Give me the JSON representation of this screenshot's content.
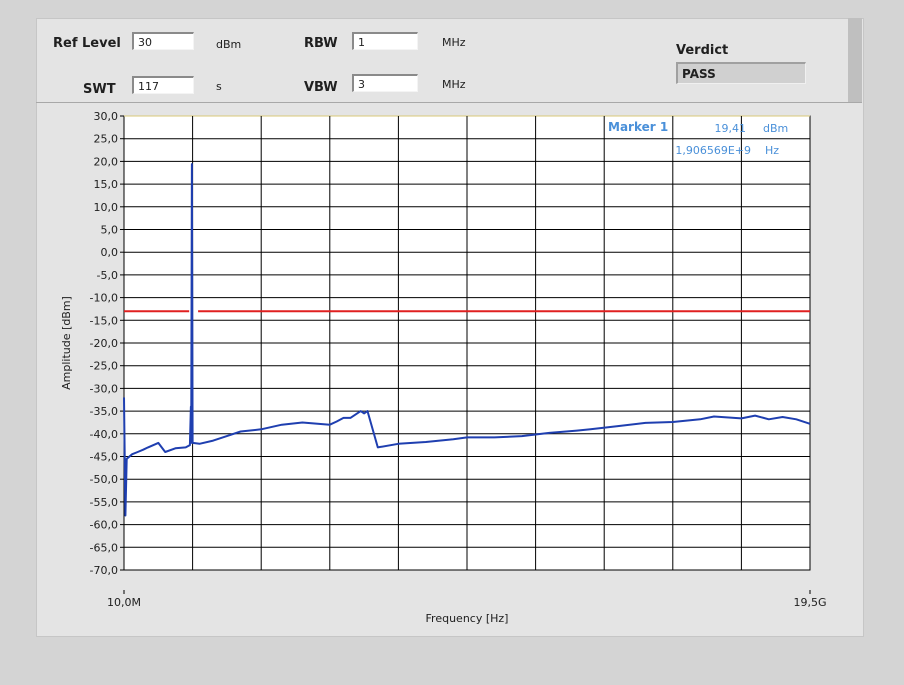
{
  "header": {
    "ref_level_label": "Ref Level",
    "ref_level_value": "30",
    "ref_level_unit": "dBm",
    "swt_label": "SWT",
    "swt_value": "117",
    "swt_unit": "s",
    "rbw_label": "RBW",
    "rbw_value": "1",
    "rbw_unit": "MHz",
    "vbw_label": "VBW",
    "vbw_value": "3",
    "vbw_unit": "MHz",
    "verdict_label": "Verdict",
    "verdict_value": "PASS"
  },
  "marker": {
    "label": "Marker 1",
    "amplitude": "19,41",
    "amplitude_unit": "dBm",
    "frequency": "1,906569E+9",
    "frequency_unit": "Hz"
  },
  "colors": {
    "plot_bg": "#ffffff",
    "grid": "#000000",
    "trace": "#1f3fb0",
    "limit": "#e02020",
    "marker_text": "#4a90d9"
  },
  "chart_data": {
    "type": "line",
    "title": "",
    "xlabel": "Frequency [Hz]",
    "ylabel": "Amplitude [dBm]",
    "xlim": [
      0,
      1
    ],
    "ylim": [
      -70,
      30
    ],
    "x_tick_labels": [
      {
        "pos": 0,
        "text": "10,0M"
      },
      {
        "pos": 1,
        "text": "19,5G"
      }
    ],
    "y_ticks": [
      30,
      25,
      20,
      15,
      10,
      5,
      0,
      -5,
      -10,
      -15,
      -20,
      -25,
      -30,
      -35,
      -40,
      -45,
      -50,
      -55,
      -60,
      -65,
      -70
    ],
    "y_tick_labels": [
      "30,0",
      "25,0",
      "20,0",
      "15,0",
      "10,0",
      "5,0",
      "0,0",
      "-5,0",
      "-10,0",
      "-15,0",
      "-20,0",
      "-25,0",
      "-30,0",
      "-35,0",
      "-40,0",
      "-45,0",
      "-50,0",
      "-55,0",
      "-60,0",
      "-65,0",
      "-70,0"
    ],
    "x_gridlines": 10,
    "grid": true,
    "limit_line": {
      "y": -13.0,
      "gap": [
        0.095,
        0.108
      ]
    },
    "series": [
      {
        "x": [
          0,
          0.002,
          0.004,
          0.012,
          0.02,
          0.028,
          0.035,
          0.05,
          0.06,
          0.075,
          0.09,
          0.096,
          0.0975,
          0.098,
          0.099,
          0.1,
          0.11,
          0.13,
          0.15,
          0.17,
          0.2,
          0.23,
          0.26,
          0.3,
          0.31,
          0.32,
          0.33,
          0.345,
          0.35,
          0.355,
          0.37,
          0.4,
          0.44,
          0.48,
          0.5,
          0.54,
          0.58,
          0.62,
          0.66,
          0.68,
          0.72,
          0.76,
          0.8,
          0.84,
          0.86,
          0.9,
          0.92,
          0.94,
          0.96,
          0.98,
          1.0
        ],
        "y": [
          -32,
          -58,
          -45.5,
          -44.5,
          -44,
          -43.5,
          -43,
          -42,
          -44,
          -43.2,
          -43,
          -42.5,
          -34,
          -42,
          19.41,
          -42,
          -42.2,
          -41.5,
          -40.5,
          -39.5,
          -39,
          -38,
          -37.5,
          -38,
          -37.3,
          -36.5,
          -36.5,
          -35,
          -35.5,
          -35,
          -43,
          -42.2,
          -41.8,
          -41.2,
          -40.8,
          -40.8,
          -40.5,
          -39.8,
          -39.3,
          -39,
          -38.3,
          -37.6,
          -37.4,
          -36.8,
          -36.2,
          -36.6,
          -36,
          -36.8,
          -36.3,
          -36.8,
          -37.8
        ]
      }
    ]
  }
}
